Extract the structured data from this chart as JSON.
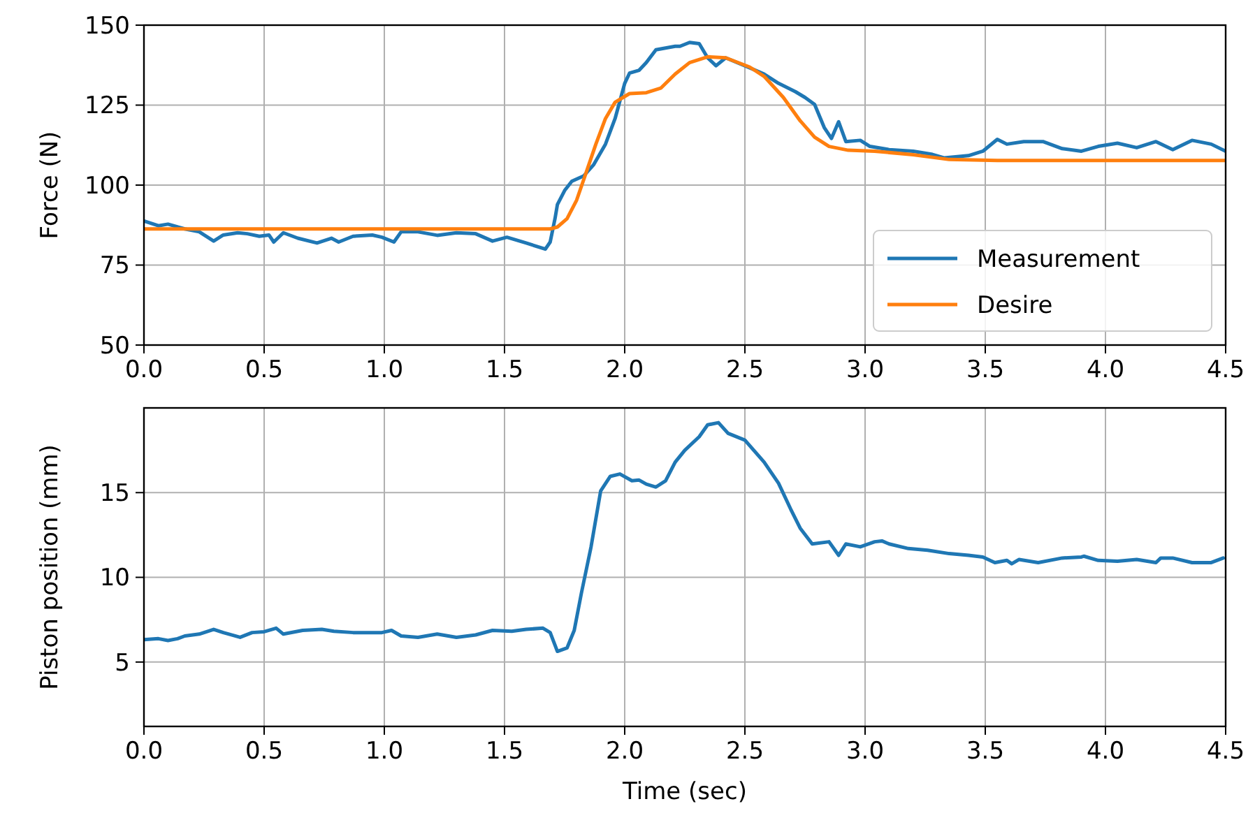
{
  "chart_data": [
    {
      "type": "line",
      "ylabel": "Force (N)",
      "xlim": [
        0,
        4.5
      ],
      "ylim": [
        50,
        150
      ],
      "xticks": [
        {
          "value": 0,
          "label": "0.0"
        },
        {
          "value": 0.5,
          "label": "0.5"
        },
        {
          "value": 1,
          "label": "1.0"
        },
        {
          "value": 1.5,
          "label": "1.5"
        },
        {
          "value": 2,
          "label": "2.0"
        },
        {
          "value": 2.5,
          "label": "2.5"
        },
        {
          "value": 3,
          "label": "3.0"
        },
        {
          "value": 3.5,
          "label": "3.5"
        },
        {
          "value": 4,
          "label": "4.0"
        },
        {
          "value": 4.5,
          "label": "4.5"
        }
      ],
      "yticks": [
        50,
        75,
        100,
        125,
        150
      ],
      "grid": true,
      "legend": "bottom right",
      "line_style": "solid",
      "series": [
        {
          "name": "Measurement",
          "color": "#1f77b4",
          "x": [
            0,
            0.06,
            0.1,
            0.17,
            0.23,
            0.29,
            0.33,
            0.39,
            0.43,
            0.48,
            0.52,
            0.54,
            0.58,
            0.64,
            0.72,
            0.78,
            0.81,
            0.87,
            0.95,
            0.99,
            1.04,
            1.07,
            1.14,
            1.22,
            1.3,
            1.38,
            1.45,
            1.51,
            1.59,
            1.67,
            1.69,
            1.71,
            1.72,
            1.75,
            1.78,
            1.83,
            1.87,
            1.92,
            1.96,
            2.0,
            2.02,
            2.06,
            2.09,
            2.13,
            2.21,
            2.23,
            2.27,
            2.31,
            2.345,
            2.38,
            2.42,
            2.5,
            2.58,
            2.64,
            2.71,
            2.75,
            2.79,
            2.83,
            2.86,
            2.89,
            2.92,
            2.98,
            3.02,
            3.1,
            3.2,
            3.28,
            3.33,
            3.43,
            3.49,
            3.55,
            3.59,
            3.66,
            3.74,
            3.82,
            3.9,
            3.97,
            4.05,
            4.13,
            4.21,
            4.28,
            4.36,
            4.44,
            4.5
          ],
          "values": [
            88.8,
            87.3,
            87.8,
            86.3,
            85.4,
            82.5,
            84.4,
            85.1,
            84.8,
            84,
            84.4,
            82.2,
            85.1,
            83.4,
            81.9,
            83.4,
            82.2,
            84,
            84.4,
            83.7,
            82.2,
            85.4,
            85.4,
            84.3,
            85.1,
            84.8,
            82.5,
            83.7,
            81.9,
            80,
            82.2,
            89.5,
            93.9,
            98.3,
            101.2,
            102.9,
            106.3,
            112.8,
            120.8,
            131.8,
            135,
            135.9,
            138.3,
            142.3,
            143.4,
            143.4,
            144.6,
            144.2,
            139.8,
            137.3,
            139.8,
            137.3,
            134.7,
            131.8,
            129.2,
            127.4,
            125.2,
            118,
            114.6,
            119.8,
            113.6,
            114,
            112.1,
            111.1,
            110.6,
            109.6,
            108.5,
            109.2,
            110.6,
            114.3,
            112.8,
            113.6,
            113.6,
            111.4,
            110.6,
            112.1,
            113.1,
            111.7,
            113.6,
            111.1,
            114,
            112.8,
            110.6
          ]
        },
        {
          "name": "Desire",
          "color": "#ff7f0e",
          "x": [
            0,
            0.5,
            1.0,
            1.5,
            1.69,
            1.72,
            1.76,
            1.8,
            1.84,
            1.88,
            1.92,
            1.96,
            2.02,
            2.09,
            2.15,
            2.21,
            2.27,
            2.345,
            2.42,
            2.52,
            2.58,
            2.66,
            2.73,
            2.79,
            2.85,
            2.93,
            3.04,
            3.2,
            3.35,
            3.55,
            3.93,
            4.5
          ],
          "values": [
            86.3,
            86.3,
            86.3,
            86.3,
            86.3,
            86.9,
            89.5,
            95.3,
            104,
            112.8,
            120.8,
            125.9,
            128.6,
            128.9,
            130.3,
            134.7,
            138.3,
            140.1,
            139.8,
            136.9,
            134,
            127.4,
            120.1,
            115,
            112.1,
            110.9,
            110.6,
            109.5,
            108,
            107.7,
            107.7,
            107.7
          ]
        }
      ]
    },
    {
      "type": "line",
      "xlabel": "Time (sec)",
      "ylabel": "Piston position (mm)",
      "xlim": [
        0,
        4.5
      ],
      "ylim": [
        1.2,
        20
      ],
      "xticks": [
        {
          "value": 0,
          "label": "0.0"
        },
        {
          "value": 0.5,
          "label": "0.5"
        },
        {
          "value": 1,
          "label": "1.0"
        },
        {
          "value": 1.5,
          "label": "1.5"
        },
        {
          "value": 2,
          "label": "2.0"
        },
        {
          "value": 2.5,
          "label": "2.5"
        },
        {
          "value": 3,
          "label": "3.0"
        },
        {
          "value": 3.5,
          "label": "3.5"
        },
        {
          "value": 4,
          "label": "4.0"
        },
        {
          "value": 4.5,
          "label": "4.5"
        }
      ],
      "yticks": [
        5,
        10,
        15
      ],
      "grid": true,
      "line_style": "solid",
      "series": [
        {
          "color": "#1f77b4",
          "x": [
            0,
            0.06,
            0.1,
            0.14,
            0.17,
            0.23,
            0.29,
            0.33,
            0.4,
            0.45,
            0.5,
            0.55,
            0.58,
            0.66,
            0.74,
            0.79,
            0.87,
            0.93,
            0.99,
            1.03,
            1.07,
            1.14,
            1.22,
            1.3,
            1.38,
            1.45,
            1.53,
            1.59,
            1.66,
            1.69,
            1.72,
            1.76,
            1.79,
            1.82,
            1.86,
            1.9,
            1.94,
            1.98,
            2.03,
            2.06,
            2.09,
            2.13,
            2.17,
            2.21,
            2.25,
            2.31,
            2.345,
            2.39,
            2.43,
            2.5,
            2.58,
            2.64,
            2.69,
            2.73,
            2.78,
            2.85,
            2.89,
            2.92,
            2.98,
            3.04,
            3.07,
            3.1,
            3.18,
            3.26,
            3.35,
            3.43,
            3.49,
            3.54,
            3.59,
            3.61,
            3.64,
            3.72,
            3.82,
            3.9,
            3.91,
            3.97,
            4.05,
            4.13,
            4.21,
            4.23,
            4.28,
            4.36,
            4.44,
            4.49
          ],
          "values": [
            6.32,
            6.38,
            6.27,
            6.38,
            6.54,
            6.65,
            6.93,
            6.74,
            6.46,
            6.74,
            6.79,
            7.0,
            6.65,
            6.87,
            6.93,
            6.82,
            6.74,
            6.74,
            6.74,
            6.87,
            6.54,
            6.46,
            6.65,
            6.46,
            6.6,
            6.87,
            6.82,
            6.93,
            7.0,
            6.74,
            5.63,
            5.83,
            6.87,
            9.08,
            11.8,
            15.1,
            15.96,
            16.1,
            15.7,
            15.74,
            15.5,
            15.33,
            15.7,
            16.8,
            17.5,
            18.3,
            19.0,
            19.13,
            18.5,
            18.1,
            16.8,
            15.55,
            14.04,
            12.9,
            11.97,
            12.1,
            11.3,
            11.97,
            11.8,
            12.1,
            12.15,
            11.97,
            11.7,
            11.6,
            11.4,
            11.3,
            11.2,
            10.87,
            11.0,
            10.8,
            11.05,
            10.87,
            11.14,
            11.2,
            11.25,
            11.0,
            10.95,
            11.05,
            10.87,
            11.14,
            11.14,
            10.87,
            10.87,
            11.14
          ]
        }
      ]
    }
  ]
}
